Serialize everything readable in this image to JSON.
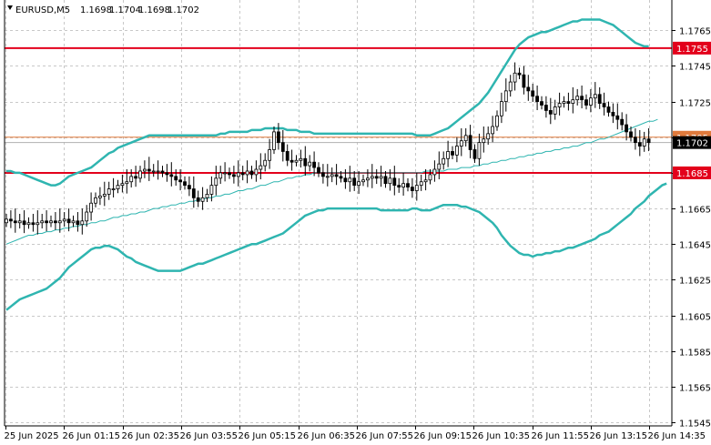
{
  "header": {
    "symbol": "EURUSD,M5",
    "open": "1.1698",
    "high": "1.1704",
    "low": "1.1698",
    "close": "1.1702"
  },
  "colors": {
    "background": "#ffffff",
    "grid": "#c8c8c8",
    "candle": "#000000",
    "bollinger": "#2fb5b0",
    "ma": "#2fb5b0",
    "level": "#e3001b",
    "current_line": "#e07a3c",
    "bid_line": "#b0b0b0",
    "tag_current_bg": "#000000"
  },
  "chart_data": {
    "type": "candlestick",
    "title": "EURUSD,M5",
    "ylim": [
      1.1543,
      1.1782
    ],
    "y_ticks": [
      "1.1765",
      "1.1745",
      "1.1725",
      "1.1705",
      "1.1685",
      "1.1665",
      "1.1645",
      "1.1625",
      "1.1605",
      "1.1585",
      "1.1565",
      "1.1545"
    ],
    "x_ticks": [
      "25 Jun 2025",
      "26 Jun 01:15",
      "26 Jun 02:35",
      "26 Jun 03:55",
      "26 Jun 05:15",
      "26 Jun 06:35",
      "26 Jun 07:55",
      "26 Jun 09:15",
      "26 Jun 10:35",
      "26 Jun 11:55",
      "26 Jun 13:15",
      "26 Jun 14:35"
    ],
    "horizontal_levels": [
      {
        "value": 1.1755,
        "label": "1.1755"
      },
      {
        "value": 1.1685,
        "label": "1.1685"
      }
    ],
    "current_price": {
      "value": 1.1702,
      "label": "1.1702"
    },
    "upper_tag": {
      "value": 1.1705,
      "label": "1.1705"
    },
    "closes": [
      1.1659,
      1.1658,
      1.1657,
      1.1658,
      1.1656,
      1.1657,
      1.1656,
      1.1657,
      1.1658,
      1.1657,
      1.1658,
      1.1657,
      1.1658,
      1.1659,
      1.1657,
      1.1658,
      1.1656,
      1.1658,
      1.1663,
      1.1668,
      1.1671,
      1.1672,
      1.1673,
      1.1676,
      1.1676,
      1.1678,
      1.1679,
      1.168,
      1.1683,
      1.1682,
      1.1686,
      1.1687,
      1.1686,
      1.1686,
      1.1686,
      1.1685,
      1.1684,
      1.1683,
      1.1681,
      1.168,
      1.1678,
      1.1676,
      1.1671,
      1.1669,
      1.1671,
      1.1673,
      1.1678,
      1.1682,
      1.1685,
      1.1685,
      1.1684,
      1.1683,
      1.1685,
      1.1684,
      1.1686,
      1.1684,
      1.1687,
      1.1689,
      1.1692,
      1.1698,
      1.1708,
      1.1702,
      1.1697,
      1.1692,
      1.1691,
      1.1692,
      1.1693,
      1.1689,
      1.1691,
      1.1688,
      1.1685,
      1.1683,
      1.1683,
      1.1684,
      1.1683,
      1.1682,
      1.168,
      1.1682,
      1.1678,
      1.168,
      1.1681,
      1.1682,
      1.1683,
      1.1682,
      1.1683,
      1.1679,
      1.1682,
      1.1678,
      1.1677,
      1.1679,
      1.1677,
      1.1675,
      1.1678,
      1.168,
      1.1681,
      1.1684,
      1.1687,
      1.169,
      1.1693,
      1.1697,
      1.1695,
      1.17,
      1.1703,
      1.1706,
      1.1698,
      1.1693,
      1.1702,
      1.1704,
      1.1707,
      1.1711,
      1.1717,
      1.1725,
      1.1731,
      1.1736,
      1.1741,
      1.174,
      1.1733,
      1.1731,
      1.1728,
      1.1725,
      1.1723,
      1.172,
      1.1718,
      1.1722,
      1.1724,
      1.1725,
      1.1724,
      1.1726,
      1.1728,
      1.1726,
      1.1723,
      1.1727,
      1.1729,
      1.1724,
      1.1722,
      1.1719,
      1.1717,
      1.1715,
      1.1712,
      1.1708,
      1.1705,
      1.1702,
      1.17,
      1.1704,
      1.1702
    ],
    "bb_upper": [
      1.1686,
      1.1686,
      1.1685,
      1.1685,
      1.1684,
      1.1683,
      1.1682,
      1.1681,
      1.168,
      1.1679,
      1.1678,
      1.1678,
      1.1679,
      1.1681,
      1.1683,
      1.1684,
      1.1685,
      1.1686,
      1.1687,
      1.1688,
      1.169,
      1.1692,
      1.1694,
      1.1696,
      1.1697,
      1.1699,
      1.17,
      1.1701,
      1.1702,
      1.1703,
      1.1704,
      1.1705,
      1.1706,
      1.1706,
      1.1706,
      1.1706,
      1.1706,
      1.1706,
      1.1706,
      1.1706,
      1.1706,
      1.1706,
      1.1706,
      1.1706,
      1.1706,
      1.1706,
      1.1706,
      1.1706,
      1.1707,
      1.1707,
      1.1708,
      1.1708,
      1.1708,
      1.1708,
      1.1708,
      1.1709,
      1.1709,
      1.1709,
      1.171,
      1.171,
      1.171,
      1.171,
      1.171,
      1.1709,
      1.1709,
      1.1709,
      1.1708,
      1.1708,
      1.1708,
      1.1707,
      1.1707,
      1.1707,
      1.1707,
      1.1707,
      1.1707,
      1.1707,
      1.1707,
      1.1707,
      1.1707,
      1.1707,
      1.1707,
      1.1707,
      1.1707,
      1.1707,
      1.1707,
      1.1707,
      1.1707,
      1.1707,
      1.1707,
      1.1707,
      1.1707,
      1.1707,
      1.1706,
      1.1706,
      1.1706,
      1.1706,
      1.1707,
      1.1708,
      1.1709,
      1.171,
      1.1712,
      1.1714,
      1.1716,
      1.1718,
      1.172,
      1.1722,
      1.1724,
      1.1727,
      1.173,
      1.1734,
      1.1738,
      1.1742,
      1.1746,
      1.175,
      1.1754,
      1.1757,
      1.1759,
      1.1761,
      1.1762,
      1.1763,
      1.1764,
      1.1764,
      1.1765,
      1.1766,
      1.1767,
      1.1768,
      1.1769,
      1.177,
      1.177,
      1.1771,
      1.1771,
      1.1771,
      1.1771,
      1.1771,
      1.177,
      1.1769,
      1.1768,
      1.1766,
      1.1764,
      1.1762,
      1.176,
      1.1758,
      1.1757,
      1.1756,
      1.1756
    ],
    "bb_lower": [
      1.1608,
      1.161,
      1.1612,
      1.1614,
      1.1615,
      1.1616,
      1.1617,
      1.1618,
      1.1619,
      1.162,
      1.1622,
      1.1624,
      1.1626,
      1.1629,
      1.1632,
      1.1634,
      1.1636,
      1.1638,
      1.164,
      1.1642,
      1.1643,
      1.1643,
      1.1644,
      1.1644,
      1.1643,
      1.1642,
      1.164,
      1.1638,
      1.1637,
      1.1635,
      1.1634,
      1.1633,
      1.1632,
      1.1631,
      1.163,
      1.163,
      1.163,
      1.163,
      1.163,
      1.163,
      1.1631,
      1.1632,
      1.1633,
      1.1634,
      1.1634,
      1.1635,
      1.1636,
      1.1637,
      1.1638,
      1.1639,
      1.164,
      1.1641,
      1.1642,
      1.1643,
      1.1644,
      1.1645,
      1.1645,
      1.1646,
      1.1647,
      1.1648,
      1.1649,
      1.165,
      1.1651,
      1.1653,
      1.1655,
      1.1657,
      1.1659,
      1.1661,
      1.1662,
      1.1663,
      1.1664,
      1.1664,
      1.1665,
      1.1665,
      1.1665,
      1.1665,
      1.1665,
      1.1665,
      1.1665,
      1.1665,
      1.1665,
      1.1665,
      1.1665,
      1.1665,
      1.1664,
      1.1664,
      1.1664,
      1.1664,
      1.1664,
      1.1664,
      1.1664,
      1.1665,
      1.1665,
      1.1664,
      1.1664,
      1.1664,
      1.1665,
      1.1666,
      1.1667,
      1.1667,
      1.1667,
      1.1667,
      1.1666,
      1.1666,
      1.1665,
      1.1664,
      1.1663,
      1.1661,
      1.1659,
      1.1657,
      1.1654,
      1.165,
      1.1647,
      1.1644,
      1.1642,
      1.164,
      1.1639,
      1.1639,
      1.1638,
      1.1639,
      1.1639,
      1.164,
      1.164,
      1.1641,
      1.1641,
      1.1642,
      1.1643,
      1.1643,
      1.1644,
      1.1645,
      1.1646,
      1.1647,
      1.1648,
      1.165,
      1.1651,
      1.1652,
      1.1654,
      1.1656,
      1.1658,
      1.166,
      1.1662,
      1.1665,
      1.1667,
      1.1669,
      1.1672,
      1.1674,
      1.1676,
      1.1678,
      1.1679
    ],
    "ma": [
      1.1645,
      1.1646,
      1.1647,
      1.1648,
      1.1649,
      1.165,
      1.165,
      1.1651,
      1.1651,
      1.1652,
      1.1652,
      1.1653,
      1.1653,
      1.1654,
      1.1654,
      1.1655,
      1.1655,
      1.1656,
      1.1656,
      1.1657,
      1.1657,
      1.1658,
      1.1658,
      1.1659,
      1.166,
      1.166,
      1.1661,
      1.1661,
      1.1662,
      1.1662,
      1.1663,
      1.1663,
      1.1664,
      1.1665,
      1.1665,
      1.1666,
      1.1666,
      1.1667,
      1.1667,
      1.1668,
      1.1668,
      1.1669,
      1.1669,
      1.167,
      1.167,
      1.1671,
      1.1671,
      1.1672,
      1.1672,
      1.1673,
      1.1673,
      1.1674,
      1.1675,
      1.1675,
      1.1676,
      1.1676,
      1.1677,
      1.1678,
      1.1678,
      1.1679,
      1.168,
      1.168,
      1.1681,
      1.1682,
      1.1682,
      1.1683,
      1.1683,
      1.1684,
      1.1684,
      1.1685,
      1.1685,
      1.1685,
      1.1685,
      1.1685,
      1.1685,
      1.1685,
      1.1685,
      1.1685,
      1.1685,
      1.1685,
      1.1685,
      1.1685,
      1.1685,
      1.1685,
      1.1685,
      1.1685,
      1.1685,
      1.1685,
      1.1685,
      1.1685,
      1.1685,
      1.1685,
      1.1685,
      1.1685,
      1.1686,
      1.1686,
      1.1686,
      1.1686,
      1.1686,
      1.1687,
      1.1687,
      1.1687,
      1.1688,
      1.1688,
      1.1688,
      1.1689,
      1.1689,
      1.169,
      1.169,
      1.1691,
      1.1691,
      1.1692,
      1.1692,
      1.1693,
      1.1693,
      1.1694,
      1.1694,
      1.1695,
      1.1695,
      1.1696,
      1.1696,
      1.1697,
      1.1697,
      1.1698,
      1.1698,
      1.1699,
      1.1699,
      1.17,
      1.17,
      1.1701,
      1.1702,
      1.1702,
      1.1703,
      1.1704,
      1.1704,
      1.1705,
      1.1706,
      1.1707,
      1.1708,
      1.1709,
      1.171,
      1.1711,
      1.1712,
      1.1713,
      1.1714,
      1.1714,
      1.1715
    ]
  }
}
